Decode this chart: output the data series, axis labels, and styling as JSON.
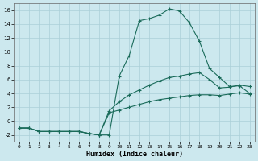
{
  "xlabel": "Humidex (Indice chaleur)",
  "bg_color": "#cce8ee",
  "grid_color": "#aacfd8",
  "line_color": "#1a6b5a",
  "xlim": [
    -0.5,
    23.5
  ],
  "ylim": [
    -3,
    17
  ],
  "xticks": [
    0,
    1,
    2,
    3,
    4,
    5,
    6,
    7,
    8,
    9,
    10,
    11,
    12,
    13,
    14,
    15,
    16,
    17,
    18,
    19,
    20,
    21,
    22,
    23
  ],
  "yticks": [
    -2,
    0,
    2,
    4,
    6,
    8,
    10,
    12,
    14,
    16
  ],
  "curve1_x": [
    0,
    1,
    2,
    3,
    4,
    5,
    6,
    7,
    8,
    9,
    10,
    11,
    12,
    13,
    14,
    15,
    16,
    17,
    18,
    19,
    20,
    21,
    22,
    23
  ],
  "curve1_y": [
    -1.0,
    -1.0,
    -1.5,
    -1.5,
    -1.5,
    -1.5,
    -1.5,
    -1.8,
    -2.0,
    -2.0,
    6.5,
    9.5,
    14.5,
    14.8,
    15.3,
    16.2,
    15.9,
    14.2,
    11.5,
    7.6,
    6.3,
    5.0,
    5.1,
    4.0
  ],
  "curve2_x": [
    0,
    1,
    2,
    3,
    4,
    5,
    6,
    7,
    8,
    9,
    10,
    11,
    12,
    13,
    14,
    15,
    16,
    17,
    18,
    19,
    20,
    21,
    22,
    23
  ],
  "curve2_y": [
    -1.0,
    -1.0,
    -1.5,
    -1.5,
    -1.5,
    -1.5,
    -1.5,
    -1.8,
    -2.0,
    1.5,
    2.8,
    3.8,
    4.5,
    5.2,
    5.8,
    6.3,
    6.5,
    6.8,
    7.0,
    6.0,
    4.8,
    4.9,
    5.2,
    5.0
  ],
  "curve3_x": [
    0,
    1,
    2,
    3,
    4,
    5,
    6,
    7,
    8,
    9,
    10,
    11,
    12,
    13,
    14,
    15,
    16,
    17,
    18,
    19,
    20,
    21,
    22,
    23
  ],
  "curve3_y": [
    -1.0,
    -1.0,
    -1.5,
    -1.5,
    -1.5,
    -1.5,
    -1.5,
    -1.8,
    -2.0,
    1.2,
    1.6,
    2.0,
    2.4,
    2.8,
    3.1,
    3.3,
    3.5,
    3.7,
    3.8,
    3.8,
    3.7,
    3.9,
    4.1,
    3.9
  ]
}
